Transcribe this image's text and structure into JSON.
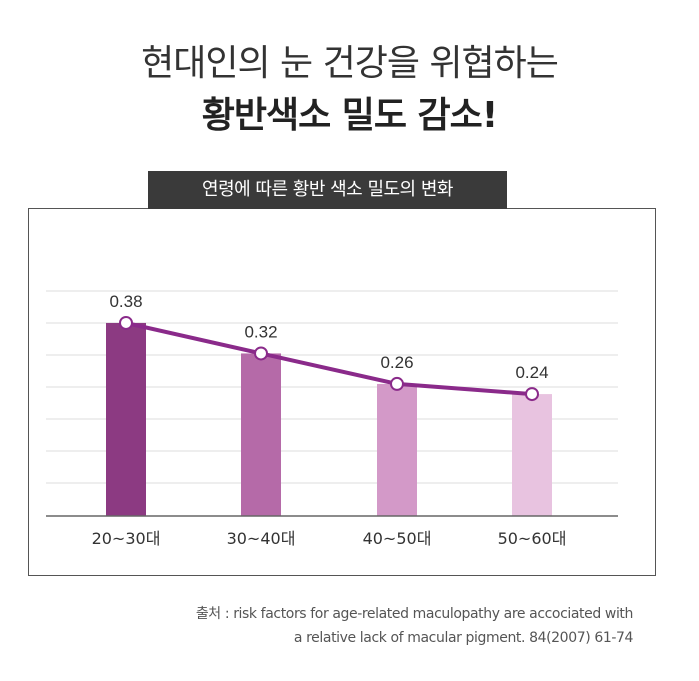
{
  "headline": {
    "line1": "현대인의 눈 건강을 위협하는",
    "line2": "황반색소 밀도 감소!"
  },
  "chart_data": {
    "type": "bar",
    "title": "연령에 따른 황반 색소 밀도의 변화",
    "categories": [
      "20~30대",
      "30~40대",
      "40~50대",
      "50~60대"
    ],
    "values": [
      0.38,
      0.32,
      0.26,
      0.24
    ],
    "value_labels": [
      "0.38",
      "0.32",
      "0.26",
      "0.24"
    ],
    "overlay_line": true,
    "grid": true,
    "bar_colors": [
      "#8c3a82",
      "#b56aa8",
      "#d399c8",
      "#e8c3e0"
    ],
    "line_color": "#8a2a8a"
  },
  "source": {
    "line1": "출처 : risk factors for age-related maculopathy are accociated with",
    "line2": "a relative lack of macular pigment. 84(2007) 61-74"
  }
}
